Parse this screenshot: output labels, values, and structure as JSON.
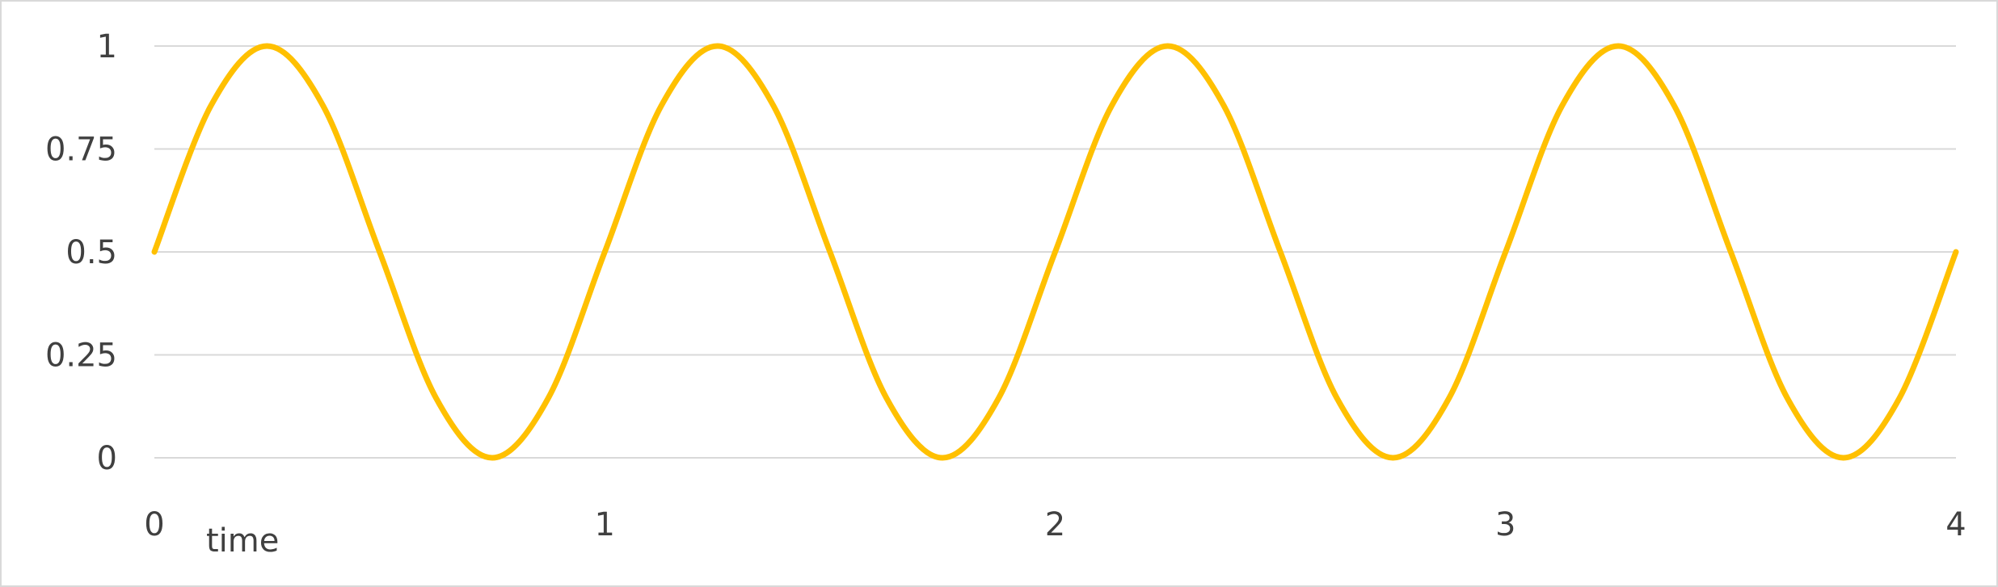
{
  "chart_data": {
    "type": "line",
    "title": "",
    "xlabel": "time",
    "ylabel": "",
    "xlim": [
      0,
      4
    ],
    "ylim": [
      0,
      1
    ],
    "x_ticks": [
      "0",
      "1",
      "2",
      "3",
      "4"
    ],
    "y_ticks": [
      "0",
      "0.25",
      "0.5",
      "0.75",
      "1"
    ],
    "grid": "horizontal",
    "legend": "none",
    "series": [
      {
        "color": "#FFC000",
        "x": [
          0,
          0.125,
          0.25,
          0.375,
          0.5,
          0.625,
          0.75,
          0.875,
          1,
          1.125,
          1.25,
          1.375,
          1.5,
          1.625,
          1.75,
          1.875,
          2,
          2.125,
          2.25,
          2.375,
          2.5,
          2.625,
          2.75,
          2.875,
          3,
          3.125,
          3.25,
          3.375,
          3.5,
          3.625,
          3.75,
          3.875,
          4
        ],
        "values": [
          0.5,
          0.854,
          1,
          0.854,
          0.5,
          0.146,
          0,
          0.146,
          0.5,
          0.854,
          1,
          0.854,
          0.5,
          0.146,
          0,
          0.146,
          0.5,
          0.854,
          1,
          0.854,
          0.5,
          0.146,
          0,
          0.146,
          0.5,
          0.854,
          1,
          0.854,
          0.5,
          0.146,
          0,
          0.146,
          0.5
        ]
      }
    ]
  }
}
